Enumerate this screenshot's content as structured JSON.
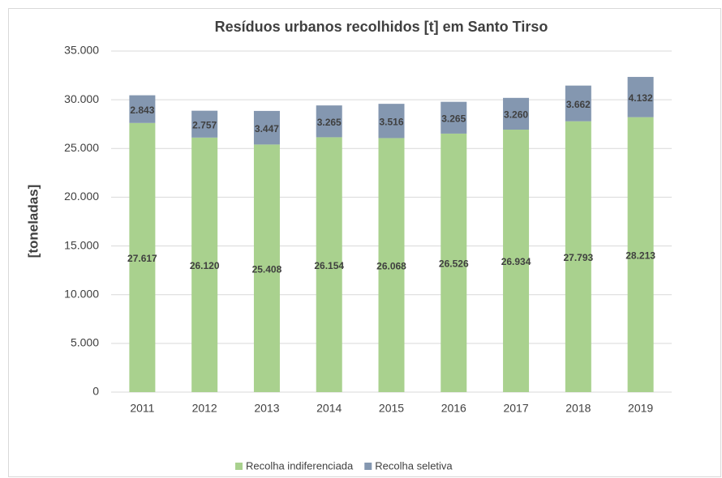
{
  "chart_data": {
    "type": "stacked_bar",
    "title": "Resíduos urbanos recolhidos [t] em Santo Tirso",
    "ylabel": "[toneladas]",
    "categories": [
      "2011",
      "2012",
      "2013",
      "2014",
      "2015",
      "2016",
      "2017",
      "2018",
      "2019"
    ],
    "series": [
      {
        "name": "Recolha indiferenciada",
        "color": "#a9d18e",
        "values": [
          27617,
          26120,
          25408,
          26154,
          26068,
          26526,
          26934,
          27793,
          28213
        ],
        "value_labels": [
          "27.617",
          "26.120",
          "25.408",
          "26.154",
          "26.068",
          "26.526",
          "26.934",
          "27.793",
          "28.213"
        ]
      },
      {
        "name": "Recolha seletiva",
        "color": "#8497b0",
        "values": [
          2843,
          2757,
          3447,
          3265,
          3516,
          3265,
          3260,
          3662,
          4132
        ],
        "value_labels": [
          "2.843",
          "2.757",
          "3.447",
          "3.265",
          "3.516",
          "3.265",
          "3.260",
          "3.662",
          "4.132"
        ]
      }
    ],
    "ylim": [
      0,
      35000
    ],
    "yticks": [
      {
        "value": 0,
        "label": "0"
      },
      {
        "value": 5000,
        "label": "5.000"
      },
      {
        "value": 10000,
        "label": "10.000"
      },
      {
        "value": 15000,
        "label": "15.000"
      },
      {
        "value": 20000,
        "label": "20.000"
      },
      {
        "value": 25000,
        "label": "25.000"
      },
      {
        "value": 30000,
        "label": "30.000"
      },
      {
        "value": 35000,
        "label": "35.000"
      }
    ],
    "grid": true,
    "legend": "bottom"
  }
}
